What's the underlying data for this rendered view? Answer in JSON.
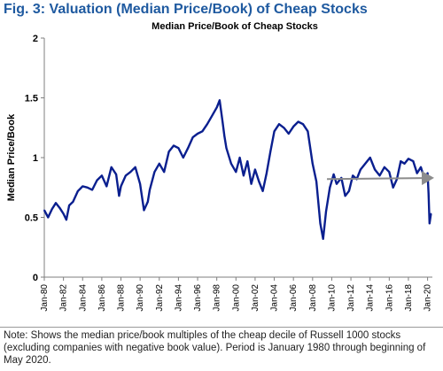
{
  "figure_title": "Fig. 3: Valuation (Median Price/Book) of Cheap Stocks",
  "note": "Note: Shows the median price/book multiples of the cheap decile of Russell 1000 stocks (excluding companies with negative book value). Period is January 1980 through beginning of May 2020.",
  "colors": {
    "title": "#1f5aa0",
    "series": "#0a1f8f",
    "trend_arrow": "#8c8c8c",
    "axis": "#7f7f7f"
  },
  "chart_data": {
    "type": "line",
    "title": "Median Price/Book of Cheap Stocks",
    "ylabel": "Median Price/Book",
    "xlabel": "",
    "ylim": [
      0,
      2
    ],
    "xlim": [
      1980,
      2020.5
    ],
    "yticks": [
      "0",
      "0.5",
      "1",
      "1.5",
      "2"
    ],
    "xticks": [
      "Jan-80",
      "Jan-82",
      "Jan-84",
      "Jan-86",
      "Jan-88",
      "Jan-90",
      "Jan-92",
      "Jan-94",
      "Jan-96",
      "Jan-98",
      "Jan-00",
      "Jan-02",
      "Jan-04",
      "Jan-06",
      "Jan-08",
      "Jan-10",
      "Jan-12",
      "Jan-14",
      "Jan-16",
      "Jan-18",
      "Jan-20"
    ],
    "grid": false,
    "legend": "none",
    "series": [
      {
        "x": [
          1980.0,
          1980.4,
          1980.8,
          1981.2,
          1981.6,
          1982.0,
          1982.3,
          1982.6,
          1983.0,
          1983.5,
          1984.0,
          1984.5,
          1985.0,
          1985.5,
          1986.0,
          1986.5,
          1987.0,
          1987.5,
          1987.8,
          1988.0,
          1988.5,
          1989.0,
          1989.5,
          1990.0,
          1990.4,
          1990.8,
          1991.0,
          1991.5,
          1992.0,
          1992.5,
          1993.0,
          1993.5,
          1994.0,
          1994.5,
          1995.0,
          1995.5,
          1996.0,
          1996.5,
          1997.0,
          1997.5,
          1998.0,
          1998.3,
          1998.6,
          1998.8,
          1999.0,
          1999.5,
          2000.0,
          2000.4,
          2000.8,
          2001.2,
          2001.6,
          2002.0,
          2002.4,
          2002.8,
          2003.2,
          2003.6,
          2004.0,
          2004.5,
          2005.0,
          2005.5,
          2006.0,
          2006.5,
          2007.0,
          2007.5,
          2008.0,
          2008.4,
          2008.8,
          2009.1,
          2009.4,
          2009.8,
          2010.2,
          2010.5,
          2011.0,
          2011.4,
          2011.8,
          2012.2,
          2012.6,
          2013.0,
          2013.5,
          2014.0,
          2014.5,
          2015.0,
          2015.5,
          2016.0,
          2016.4,
          2016.8,
          2017.2,
          2017.6,
          2018.0,
          2018.5,
          2018.9,
          2019.3,
          2019.7,
          2020.0,
          2020.1,
          2020.2,
          2020.35
        ],
        "values": [
          0.56,
          0.5,
          0.57,
          0.62,
          0.58,
          0.53,
          0.48,
          0.6,
          0.63,
          0.72,
          0.76,
          0.75,
          0.73,
          0.81,
          0.85,
          0.76,
          0.92,
          0.86,
          0.68,
          0.76,
          0.85,
          0.88,
          0.92,
          0.78,
          0.56,
          0.63,
          0.73,
          0.88,
          0.95,
          0.88,
          1.05,
          1.1,
          1.08,
          1.0,
          1.08,
          1.17,
          1.2,
          1.22,
          1.28,
          1.35,
          1.42,
          1.48,
          1.3,
          1.18,
          1.08,
          0.95,
          0.88,
          1.0,
          0.85,
          0.97,
          0.78,
          0.9,
          0.8,
          0.72,
          0.87,
          1.05,
          1.22,
          1.28,
          1.25,
          1.2,
          1.26,
          1.3,
          1.28,
          1.22,
          0.95,
          0.8,
          0.45,
          0.32,
          0.55,
          0.75,
          0.86,
          0.78,
          0.83,
          0.68,
          0.72,
          0.85,
          0.82,
          0.9,
          0.95,
          1.0,
          0.9,
          0.85,
          0.92,
          0.88,
          0.75,
          0.82,
          0.97,
          0.95,
          0.99,
          0.97,
          0.87,
          0.92,
          0.82,
          0.87,
          0.7,
          0.45,
          0.53
        ]
      }
    ],
    "annotations": [
      {
        "type": "arrow",
        "from": [
          2009.5,
          0.82
        ],
        "to": [
          2020.5,
          0.83
        ]
      }
    ]
  }
}
